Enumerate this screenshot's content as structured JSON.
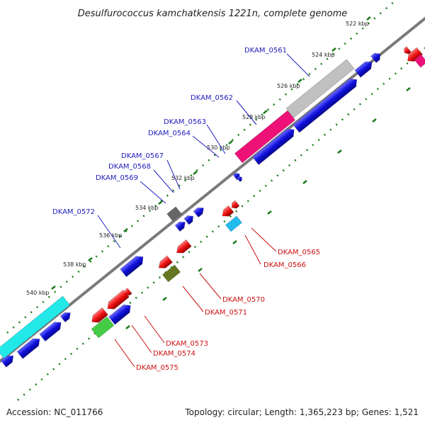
{
  "title": "Desulfurococcus kamchatkensis 1221n, complete genome",
  "accession": "Accession: NC_011766",
  "summary": "Topology: circular; Length: 1,365,223 bp; Genes: 1,521",
  "scale_labels": [
    "522 kbp",
    "524 kbp",
    "526 kbp",
    "528 kbp",
    "530 kbp",
    "532 kbp",
    "534 kbp",
    "536 kbp",
    "538 kbp",
    "540 kbp"
  ],
  "gene_labels": {
    "forward": [
      "DKAM_0561",
      "DKAM_0562",
      "DKAM_0563",
      "DKAM_0564",
      "DKAM_0567",
      "DKAM_0568",
      "DKAM_0569",
      "DKAM_0572"
    ],
    "reverse": [
      "DKAM_0565",
      "DKAM_0566",
      "DKAM_0570",
      "DKAM_0571",
      "DKAM_0573",
      "DKAM_0574",
      "DKAM_0575"
    ]
  },
  "colors": {
    "forward_gene": "#1010dd",
    "reverse_gene": "#ee1111",
    "backbone": "#808080",
    "tick": "#1a7a1a",
    "forward_label": "#2020c0",
    "reverse_label": "#cc1111",
    "gc_gray": "#c0c0c0",
    "gc_pink": "#ee1177",
    "gc_cyan": "#22e8e8",
    "gc_green": "#44cc44",
    "gc_olive": "#667722",
    "gc_sky": "#22bbee",
    "gc_darkgray": "#666666"
  }
}
